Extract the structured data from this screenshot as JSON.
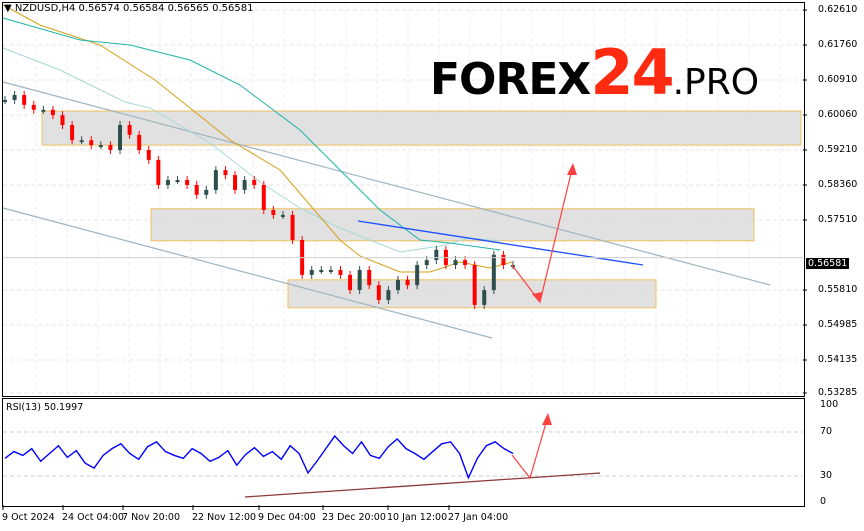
{
  "header": {
    "symbol_line": "NZDUSD,H4  0.56574 0.56584 0.56565 0.56581",
    "dropdown_icon": "triangle-down-icon"
  },
  "logo": {
    "part1": "FOREX",
    "part2": "24",
    "part3": ".PRO",
    "colors": {
      "text": "#000000",
      "accent": "#ff2a0f"
    }
  },
  "price_axis": {
    "ticks": [
      "0.62610",
      "0.61760",
      "0.60910",
      "0.60060",
      "0.59210",
      "0.58360",
      "0.57510",
      "0.55810",
      "0.54985",
      "0.54135",
      "0.53285"
    ],
    "current": "0.56581"
  },
  "rsi": {
    "title": "RSI(13) 50.1997",
    "ticks": [
      "100",
      "70",
      "30",
      "0"
    ],
    "values": [
      45,
      52,
      48,
      55,
      42,
      50,
      58,
      46,
      53,
      40,
      35,
      48,
      55,
      60,
      50,
      44,
      57,
      62,
      52,
      48,
      45,
      55,
      50,
      42,
      46,
      53,
      38,
      49,
      56,
      47,
      52,
      44,
      58,
      50,
      30,
      42,
      55,
      68,
      58,
      50,
      62,
      48,
      45,
      57,
      65,
      55,
      50,
      44,
      52,
      60,
      62,
      50,
      25,
      45,
      58,
      62,
      55,
      50
    ],
    "colors": {
      "line": "#0000ff",
      "trend": "#8b3a3a"
    }
  },
  "time_axis": {
    "labels": [
      "9 Oct 2024",
      "24 Oct 04:00",
      "7 Nov 20:00",
      "22 Nov 12:00",
      "9 Dec 04:00",
      "23 Dec 20:00",
      "10 Jan 12:00",
      "27 Jan 04:00"
    ]
  },
  "chart_data": {
    "type": "candlestick",
    "symbol": "NZDUSD",
    "timeframe": "H4",
    "ylim": [
      0.53285,
      0.6261
    ],
    "closes": [
      0.6042,
      0.6054,
      0.603,
      0.6018,
      0.6018,
      0.6005,
      0.5981,
      0.5944,
      0.5944,
      0.5932,
      0.5932,
      0.592,
      0.5981,
      0.5957,
      0.592,
      0.5896,
      0.5835,
      0.5847,
      0.5847,
      0.5835,
      0.5811,
      0.5823,
      0.5871,
      0.5859,
      0.5823,
      0.5847,
      0.5835,
      0.5774,
      0.5762,
      0.5762,
      0.5701,
      0.5616,
      0.5628,
      0.5628,
      0.5628,
      0.5616,
      0.5579,
      0.5628,
      0.5591,
      0.5555,
      0.5579,
      0.5604,
      0.5591,
      0.564,
      0.5652,
      0.5677,
      0.564,
      0.5652,
      0.564,
      0.5543,
      0.5579,
      0.5665,
      0.564,
      0.564
    ],
    "zones": [
      [
        0.6015,
        0.5932
      ],
      [
        0.5777,
        0.5699
      ],
      [
        0.5604,
        0.5536
      ]
    ],
    "colors": {
      "bull": "#2f4f4f",
      "bear": "#ff0000",
      "ma_fast": "#d4a017",
      "ma_slow": "#20b2aa",
      "trendline": "#1e4fff",
      "channel": "#9fb4c0",
      "zone_fill": "#dcdcdc",
      "zone_border": "#f0c060",
      "arrow": "#ff4040"
    }
  }
}
